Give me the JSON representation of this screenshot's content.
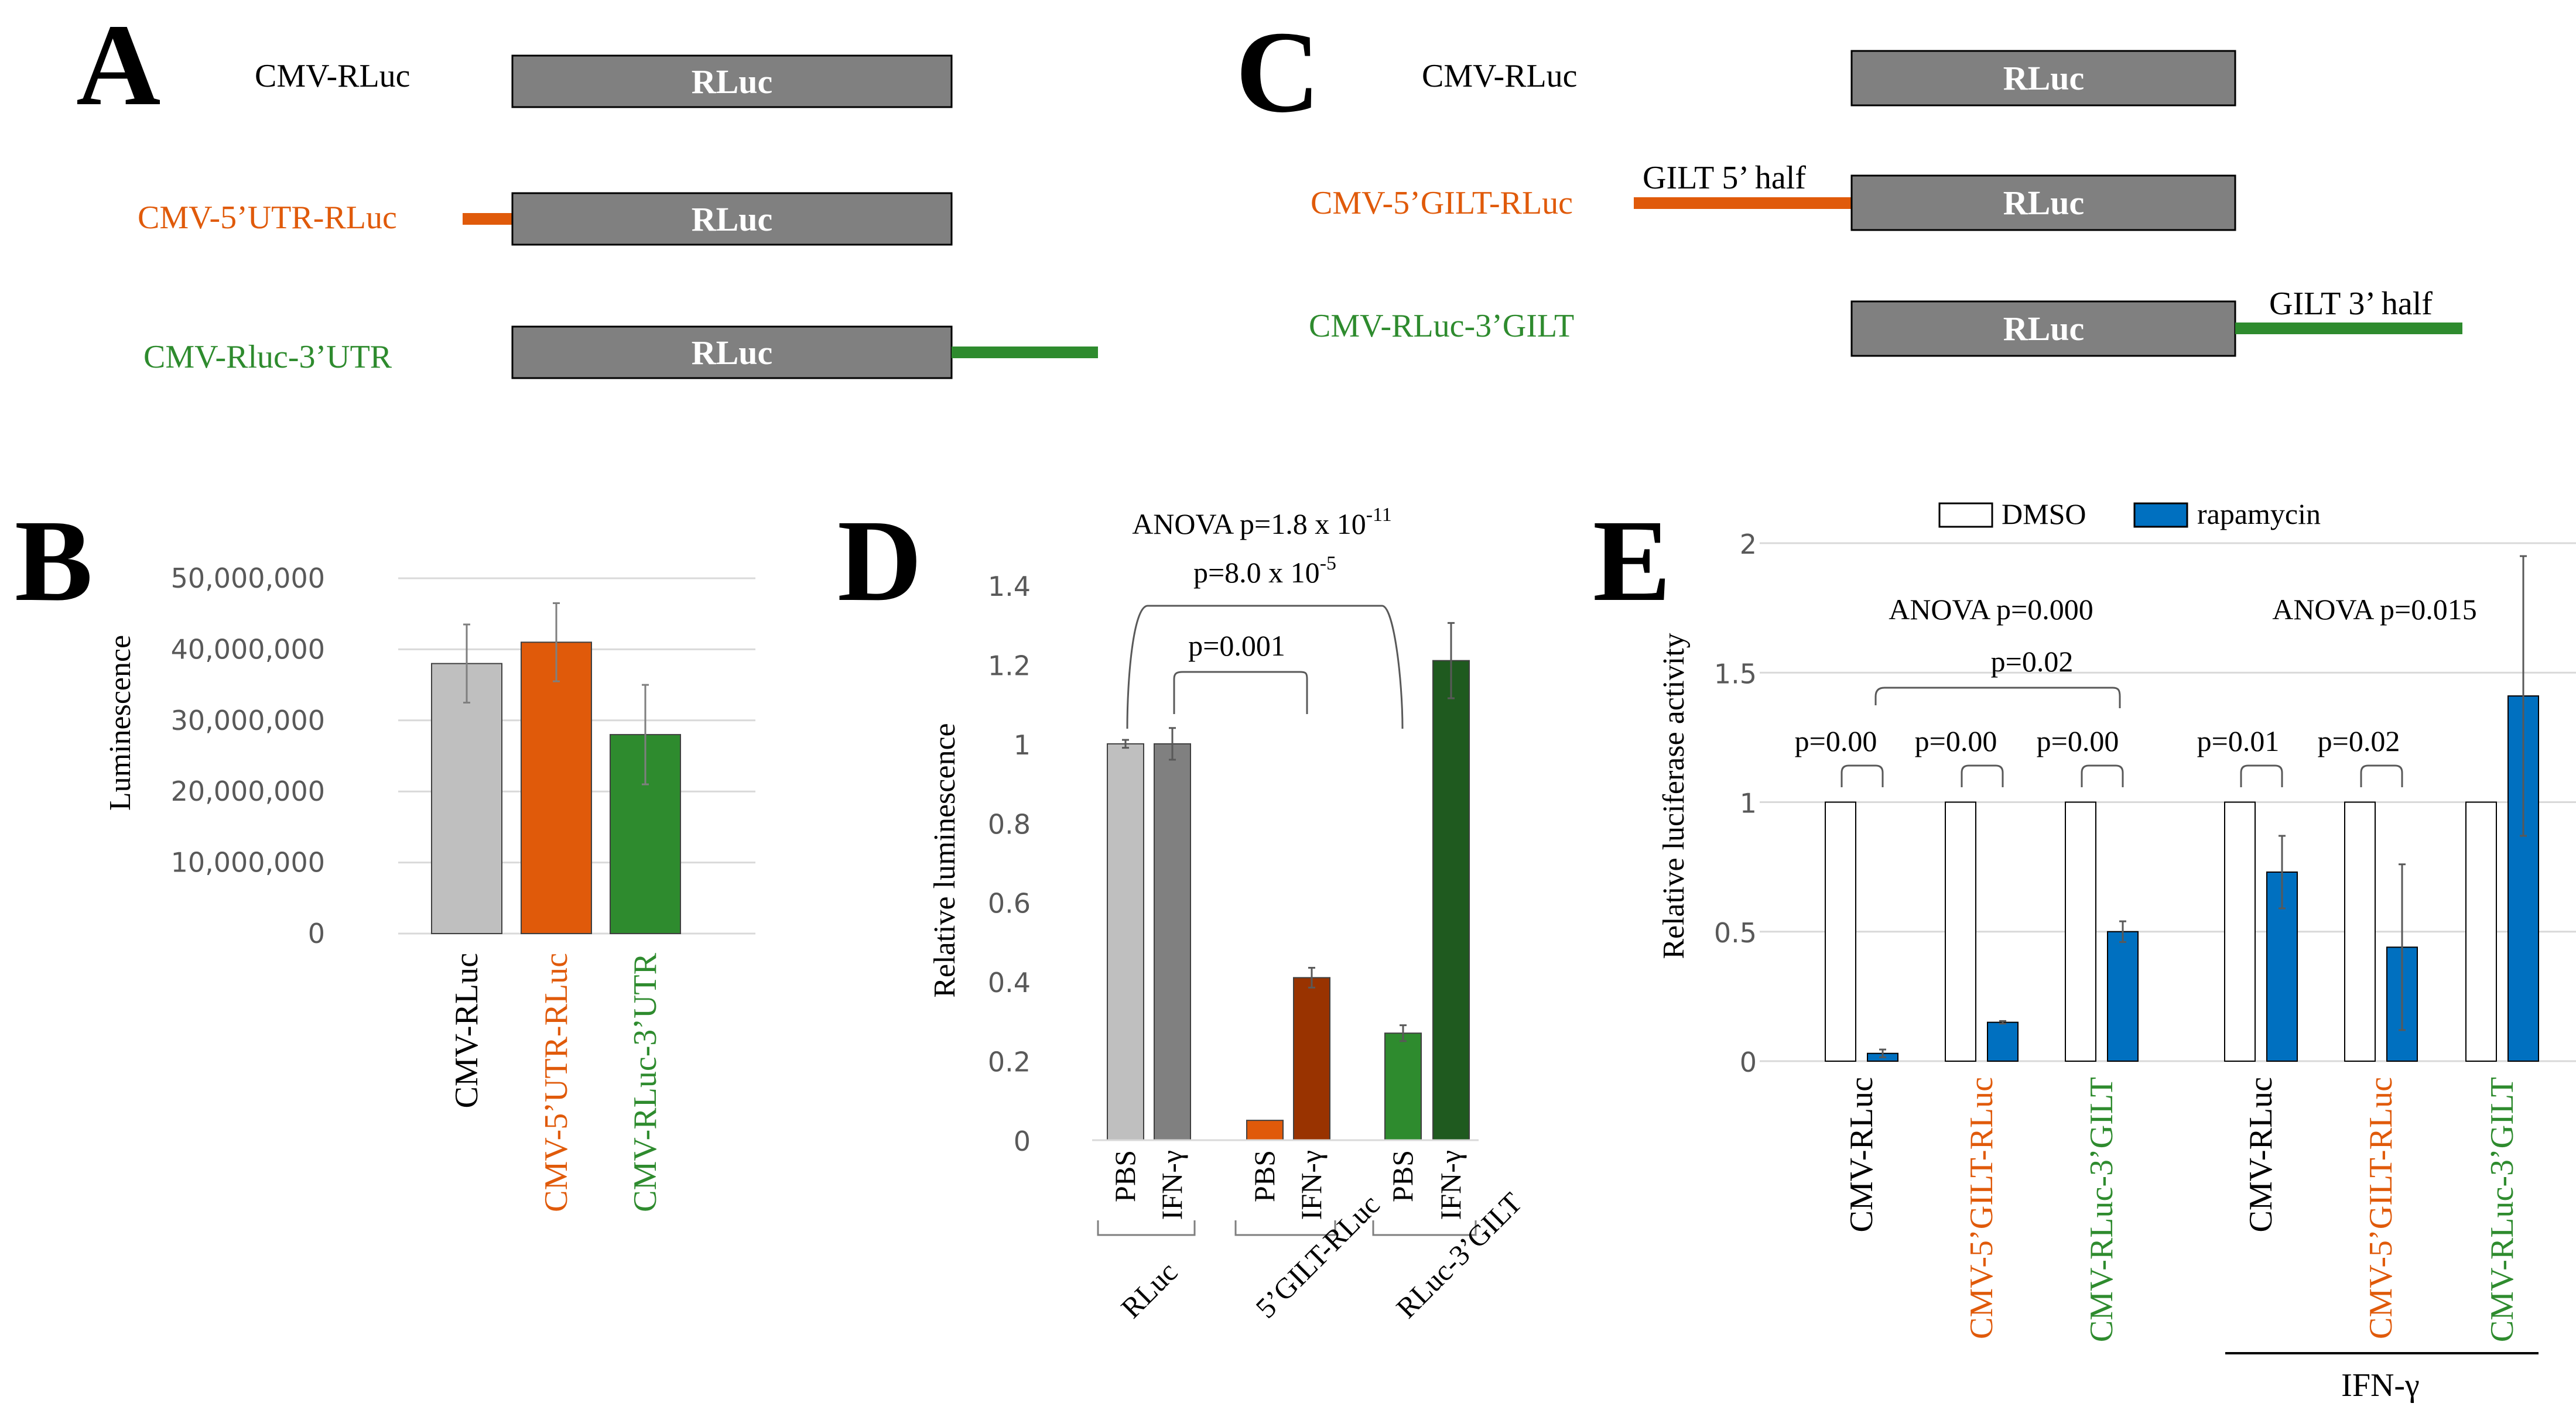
{
  "panels": {
    "A": {
      "label": "A",
      "constructs": [
        {
          "name": "CMV-RLuc",
          "box": "RLuc",
          "color": "#000000",
          "utr": "none"
        },
        {
          "name": "CMV-5’UTR-RLuc",
          "box": "RLuc",
          "color": "#E05A0A",
          "utr": "5prime"
        },
        {
          "name": "CMV-Rluc-3’UTR",
          "box": "RLuc",
          "color": "#2E8B2E",
          "utr": "3prime"
        }
      ]
    },
    "C": {
      "label": "C",
      "constructs": [
        {
          "name": "CMV-RLuc",
          "box": "RLuc",
          "color": "#000000",
          "utr": "none",
          "utr_label": ""
        },
        {
          "name": "CMV-5’GILT-RLuc",
          "box": "RLuc",
          "color": "#E05A0A",
          "utr": "5prime",
          "utr_label": "GILT 5’ half"
        },
        {
          "name": "CMV-RLuc-3’GILT",
          "box": "RLuc",
          "color": "#2E8B2E",
          "utr": "3prime",
          "utr_label": "GILT 3’ half"
        }
      ]
    },
    "B": {
      "label": "B"
    },
    "D": {
      "label": "D"
    },
    "E": {
      "label": "E"
    }
  },
  "chart_data": [
    {
      "panel": "B",
      "type": "bar",
      "ylabel": "Luminescence",
      "ylim": [
        0,
        50000000
      ],
      "yticks": [
        "0",
        "10,000,000",
        "20,000,000",
        "30,000,000",
        "40,000,000",
        "50,000,000"
      ],
      "categories": [
        "CMV-RLuc",
        "CMV-5’UTR-RLuc",
        "CMV-RLuc-3’UTR"
      ],
      "category_colors": [
        "#000000",
        "#E05A0A",
        "#2E8B2E"
      ],
      "values": [
        38000000,
        41000000,
        28000000
      ],
      "errors": [
        5500000,
        5500000,
        7000000
      ],
      "bar_colors": [
        "#BFBFBF",
        "#E05A0A",
        "#2E8B2E"
      ],
      "grid": true
    },
    {
      "panel": "D",
      "type": "bar",
      "ylabel": "Relative luminescence",
      "ylim": [
        0,
        1.4
      ],
      "yticks": [
        "0",
        "0.2",
        "0.4",
        "0.6",
        "0.8",
        "1",
        "1.2",
        "1.4"
      ],
      "bar_labels": [
        "PBS",
        "IFN-γ",
        "PBS",
        "IFN-γ",
        "PBS",
        "IFN-γ"
      ],
      "groups": [
        "RLuc",
        "5’GILT-RLuc",
        "RLuc-3’GILT"
      ],
      "group_colors": [
        "#000000",
        "#E05A0A",
        "#2E8B2E"
      ],
      "values": [
        1.0,
        1.0,
        0.05,
        0.41,
        0.27,
        1.21
      ],
      "errors": [
        0.01,
        0.04,
        0.0,
        0.025,
        0.02,
        0.095
      ],
      "bar_colors": [
        "#BFBFBF",
        "#808080",
        "#E05A0A",
        "#993300",
        "#2E8B2E",
        "#1F5A1F"
      ],
      "anova": {
        "prefix": "ANOVA p=1.8 x 10",
        "exp": "-11"
      },
      "brackets": [
        {
          "prefix": "p=8.0 x 10",
          "exp": "-5"
        },
        {
          "prefix": "p=0.001",
          "exp": ""
        }
      ],
      "grid": false
    },
    {
      "panel": "E",
      "type": "bar",
      "ylabel": "Relative luciferase activity",
      "ylim": [
        0,
        2
      ],
      "yticks": [
        "0",
        "0.5",
        "1",
        "1.5",
        "2"
      ],
      "legend": [
        "DMSO",
        "rapamycin"
      ],
      "legend_colors": [
        "#FFFFFF",
        "#0070C0"
      ],
      "categories": [
        "CMV-RLuc",
        "CMV-5’GILT-RLuc",
        "CMV-RLuc-3’GILT",
        "CMV-RLuc",
        "CMV-5’GILT-RLuc",
        "CMV-RLuc-3’GILT"
      ],
      "category_colors": [
        "#000000",
        "#E05A0A",
        "#2E8B2E",
        "#000000",
        "#E05A0A",
        "#2E8B2E"
      ],
      "series": [
        {
          "name": "DMSO",
          "values": [
            1,
            1,
            1,
            1,
            1,
            1
          ],
          "errors": [
            0,
            0,
            0,
            0,
            0,
            0
          ]
        },
        {
          "name": "rapamycin",
          "values": [
            0.03,
            0.15,
            0.5,
            0.73,
            0.44,
            1.41
          ],
          "errors": [
            0.015,
            0.005,
            0.04,
            0.14,
            0.32,
            0.54
          ]
        }
      ],
      "anova": [
        "ANOVA p=0.000",
        "ANOVA p=0.015"
      ],
      "brackets": [
        "p=0.02"
      ],
      "pair_stats": [
        "p=0.00",
        "p=0.00",
        "p=0.00",
        "p=0.01",
        "p=0.02"
      ],
      "treatment_label": "IFN-γ",
      "grid": true
    }
  ]
}
